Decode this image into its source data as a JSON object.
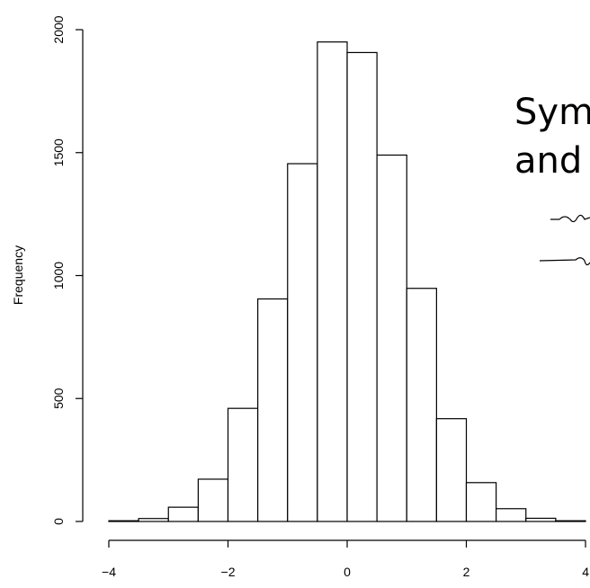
{
  "chart_data": {
    "type": "bar",
    "title": "",
    "xlabel": "",
    "ylabel": "Frequency",
    "bin_edges": [
      -4,
      -3.5,
      -3,
      -2.5,
      -2,
      -1.5,
      -1,
      -0.5,
      0,
      0.5,
      1,
      1.5,
      2,
      2.5,
      3,
      3.5,
      4
    ],
    "values": [
      3,
      12,
      58,
      172,
      460,
      905,
      1455,
      1950,
      1907,
      1490,
      948,
      418,
      158,
      52,
      13,
      3
    ],
    "xticks": [
      "−4",
      "−2",
      "0",
      "2",
      "4"
    ],
    "xtick_values": [
      -4,
      -2,
      0,
      2,
      4
    ],
    "yticks": [
      "0",
      "500",
      "1000",
      "1500",
      "2000"
    ],
    "ytick_values": [
      0,
      500,
      1000,
      1500,
      2000
    ],
    "xlim": [
      -4,
      4
    ],
    "ylim": [
      0,
      2000
    ],
    "grid": false,
    "bar_fill": "#ffffff",
    "bar_stroke": "#000000"
  },
  "overlay": {
    "heading_line1": "Sym",
    "heading_line2": "and"
  }
}
